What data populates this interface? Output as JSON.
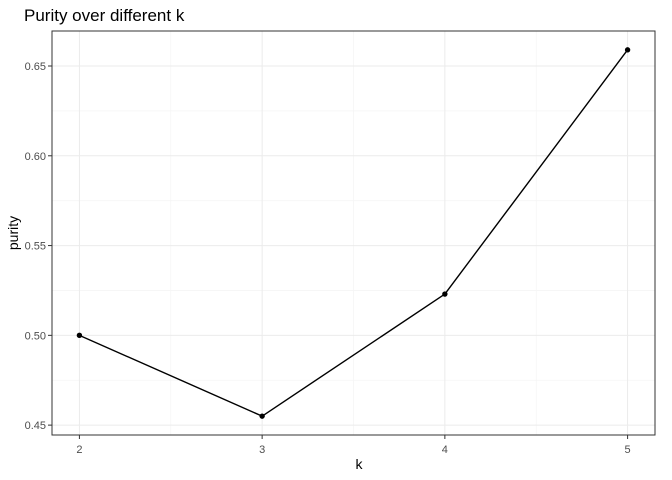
{
  "chart_data": {
    "type": "line",
    "title": "Purity over different k",
    "xlabel": "k",
    "ylabel": "purity",
    "x": [
      2,
      3,
      4,
      5
    ],
    "series": [
      {
        "values": [
          0.5,
          0.455,
          0.523,
          0.659
        ]
      }
    ],
    "x_ticks": [
      2,
      3,
      4,
      5
    ],
    "x_tick_labels": [
      "2",
      "3",
      "4",
      "5"
    ],
    "y_ticks": [
      0.45,
      0.5,
      0.55,
      0.6,
      0.65
    ],
    "y_tick_labels": [
      "0.45",
      "0.50",
      "0.55",
      "0.60",
      "0.65"
    ],
    "xlim": [
      1.85,
      5.15
    ],
    "ylim": [
      0.4445,
      0.6695
    ],
    "grid": true,
    "line_color": "#000000",
    "point_color": "#000000",
    "major_grid_color": "#ebebeb",
    "minor_grid_color": "#f5f5f5",
    "panel_border_color": "#333333"
  }
}
